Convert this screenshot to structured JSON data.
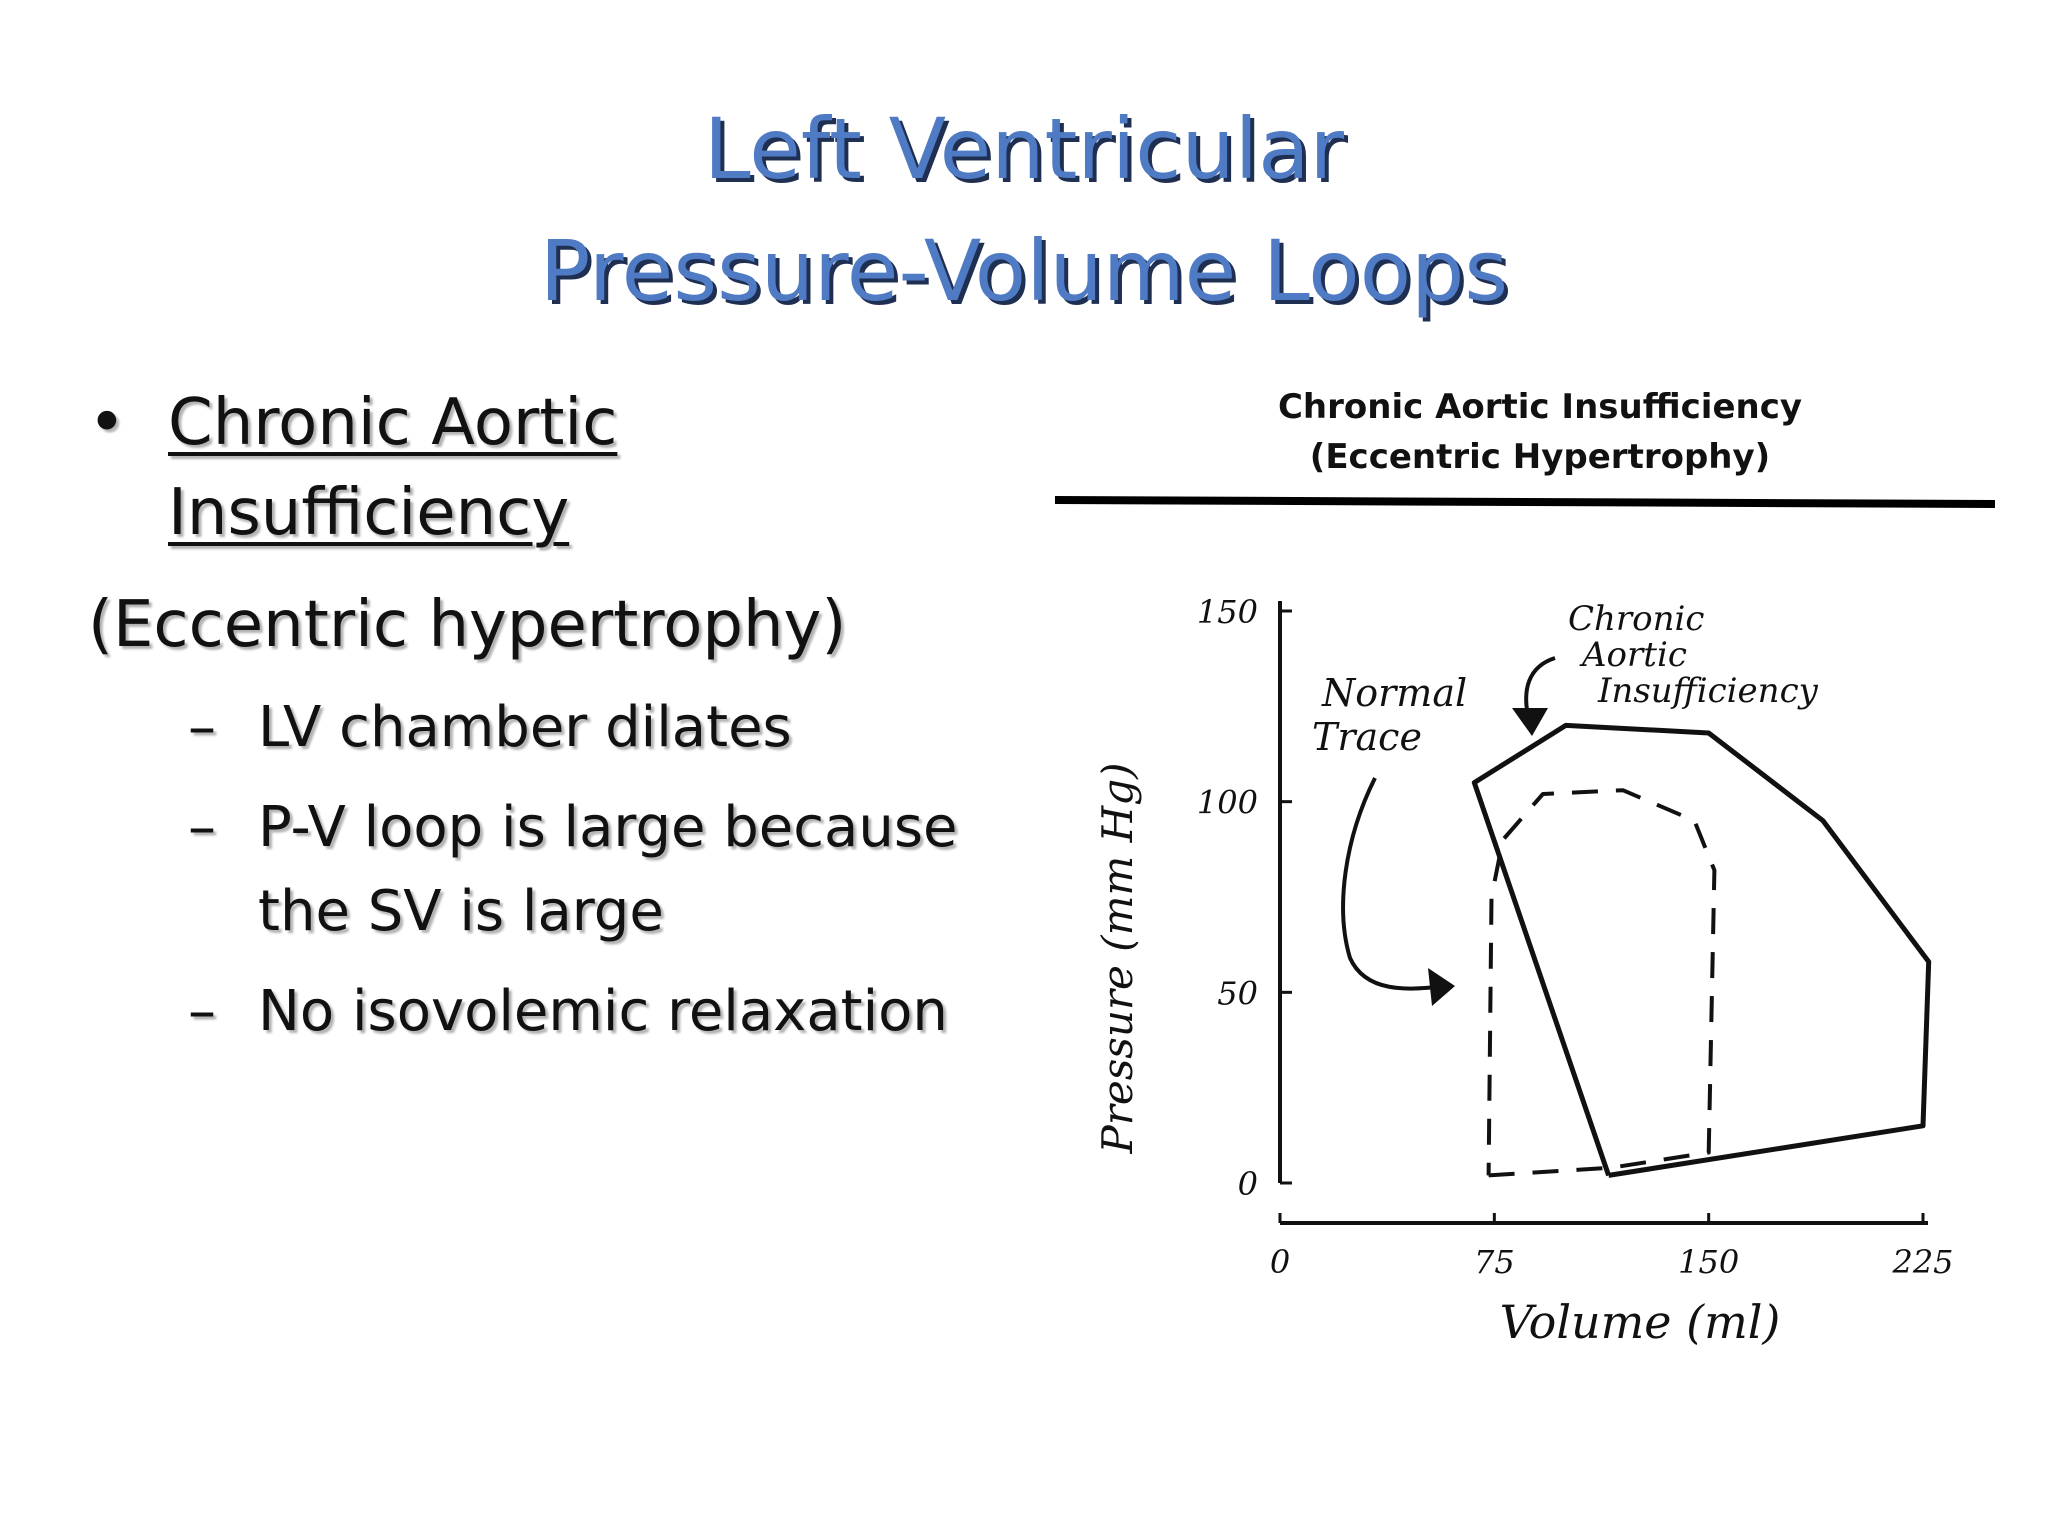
{
  "slide": {
    "title_line1": "Left Ventricular",
    "title_line2": "Pressure-Volume Loops",
    "title_color": "#4f7ac4"
  },
  "bullets": {
    "main_label": "Chronic Aortic Insufficiency",
    "main_line1": "Chronic Aortic",
    "main_line2": "Insufficiency",
    "subtitle": "(Eccentric hypertrophy)",
    "subitems": [
      {
        "line1": "LV chamber dilates",
        "line2": ""
      },
      {
        "line1": "P-V loop is large because",
        "line2": "the SV is large"
      },
      {
        "line1": "No isovolemic relaxation",
        "line2": ""
      }
    ]
  },
  "figure": {
    "header_line1": "Chronic Aortic Insufficiency",
    "header_line2": "(Eccentric Hypertrophy)",
    "xlabel": "Volume (ml)",
    "ylabel": "Pressure (mm Hg)",
    "xticks": [
      "0",
      "75",
      "150",
      "225"
    ],
    "yticks": [
      "0",
      "50",
      "100",
      "150"
    ],
    "annotation_normal_line1": "Normal",
    "annotation_normal_line2": "Trace",
    "annotation_cai_line1": "Chronic",
    "annotation_cai_line2": "Aortic",
    "annotation_cai_line3": "Insufficiency"
  },
  "chart_data": {
    "type": "line",
    "xlim": [
      0,
      225
    ],
    "ylim": [
      0,
      150
    ],
    "series": [
      {
        "name": "Chronic Aortic Insufficiency",
        "style": "solid",
        "points": [
          [
            115,
            2
          ],
          [
            225,
            15
          ],
          [
            227,
            58
          ],
          [
            190,
            95
          ],
          [
            150,
            118
          ],
          [
            100,
            120
          ],
          [
            68,
            105
          ],
          [
            115,
            2
          ]
        ]
      },
      {
        "name": "Normal Trace",
        "style": "dashed",
        "points": [
          [
            73,
            2
          ],
          [
            116,
            4
          ],
          [
            150,
            8
          ],
          [
            152,
            82
          ],
          [
            145,
            95
          ],
          [
            120,
            103
          ],
          [
            92,
            102
          ],
          [
            78,
            90
          ],
          [
            74,
            75
          ],
          [
            73,
            2
          ]
        ]
      }
    ]
  }
}
